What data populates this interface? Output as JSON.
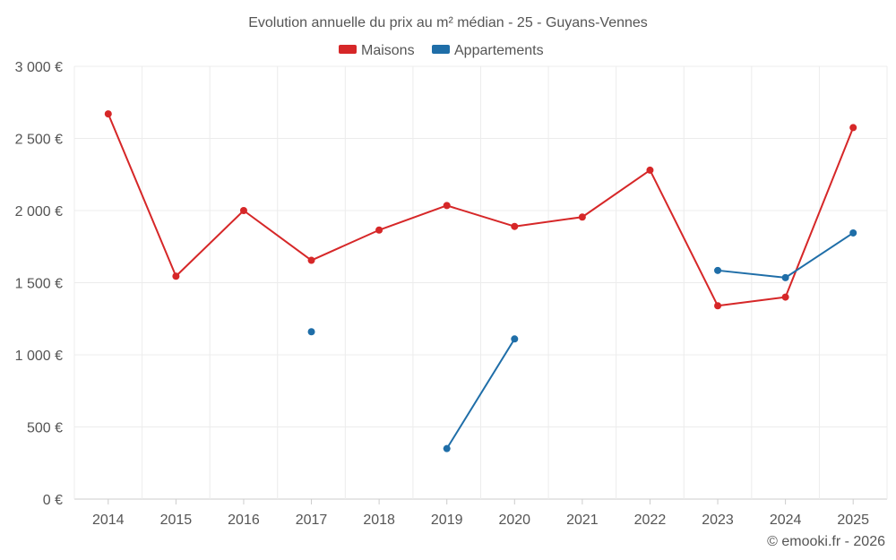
{
  "chart_data": {
    "type": "line",
    "title": "Evolution annuelle du prix au m² médian - 25 - Guyans-Vennes",
    "categories": [
      "2014",
      "2015",
      "2016",
      "2017",
      "2018",
      "2019",
      "2020",
      "2021",
      "2022",
      "2023",
      "2024",
      "2025"
    ],
    "series": [
      {
        "name": "Maisons",
        "color": "#d62728",
        "values": [
          2670,
          1545,
          2000,
          1655,
          1865,
          2035,
          1890,
          1955,
          2280,
          1340,
          1400,
          2575
        ]
      },
      {
        "name": "Appartements",
        "color": "#1f6ea8",
        "values": [
          null,
          null,
          null,
          1160,
          null,
          350,
          1110,
          null,
          null,
          1585,
          1535,
          1845
        ]
      }
    ],
    "ylim": [
      0,
      3000
    ],
    "yticks": [
      0,
      500,
      1000,
      1500,
      2000,
      2500,
      3000
    ],
    "ytick_labels": [
      "0 €",
      "500 €",
      "1 000 €",
      "1 500 €",
      "2 000 €",
      "2 500 €",
      "3 000 €"
    ],
    "xlabel": "",
    "ylabel": "",
    "legend_position": "top-center",
    "grid": true
  },
  "credit": "© emooki.fr - 2026"
}
